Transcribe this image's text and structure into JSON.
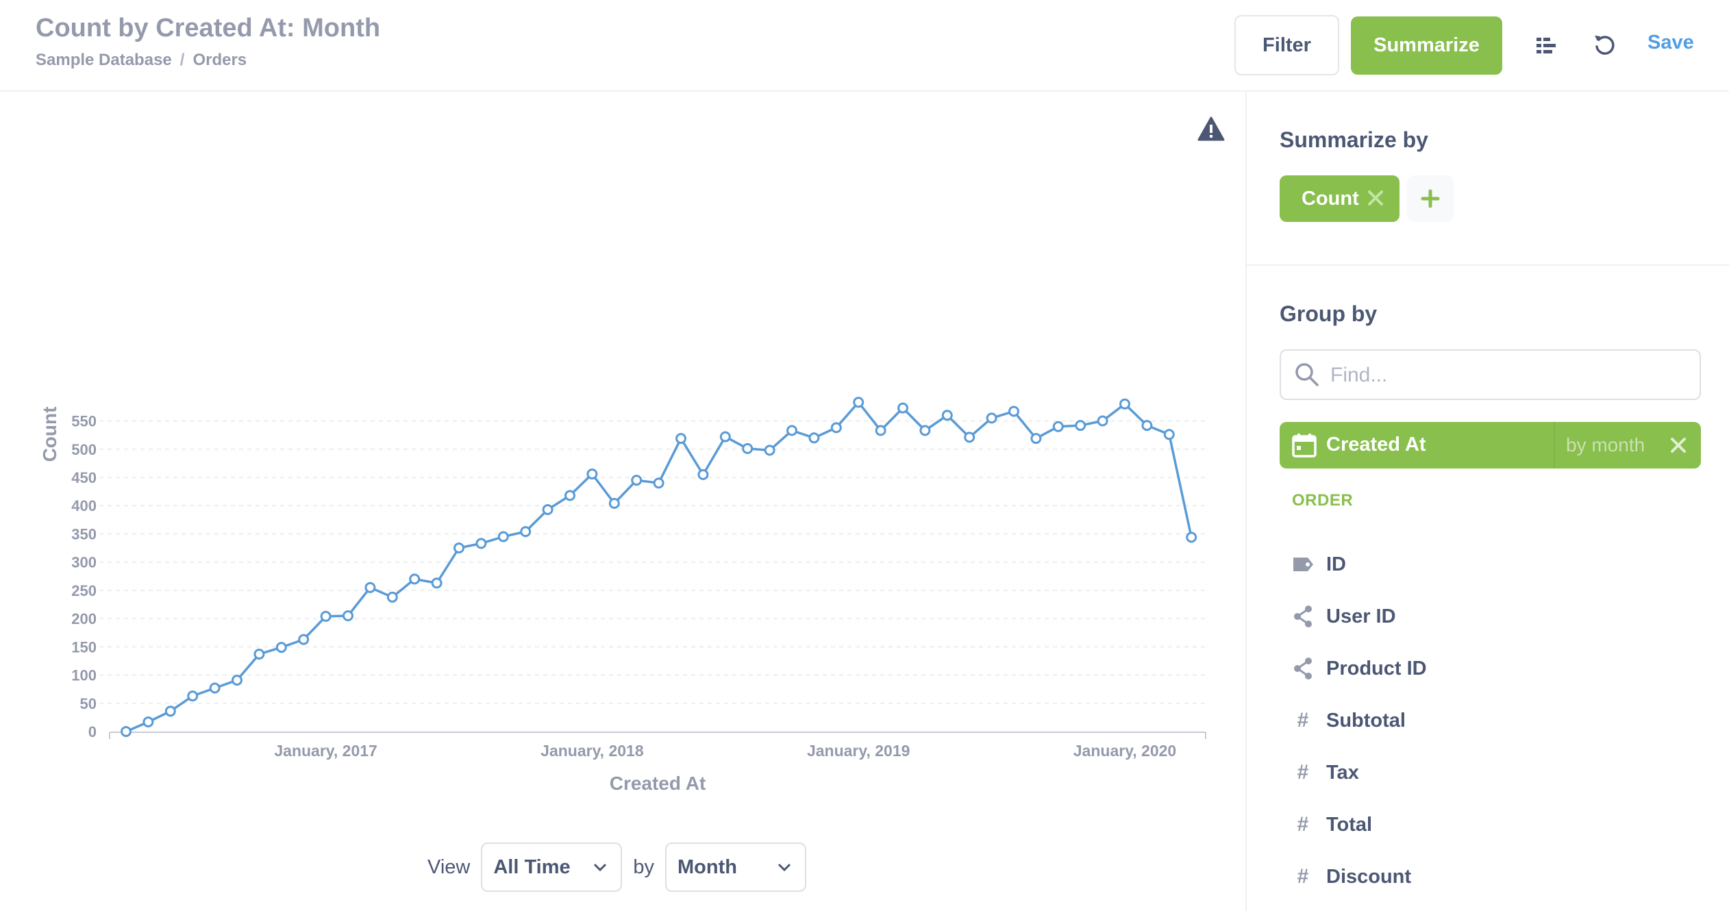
{
  "header": {
    "title": "Count by Created At: Month",
    "breadcrumb": [
      "Sample Database",
      "Orders"
    ],
    "breadcrumb_sep": "/",
    "filter_label": "Filter",
    "summarize_label": "Summarize",
    "save_label": "Save"
  },
  "colors": {
    "accent_green": "#88bf4d",
    "link_blue": "#509ee3",
    "line_series": "#5a9bd6",
    "muted_text": "#949aab",
    "dark_text": "#4c5773"
  },
  "icons": {
    "table_toggle": "table-list-icon",
    "refresh": "refresh-icon",
    "warning": "warning-icon",
    "search": "search-icon",
    "calendar": "calendar-icon",
    "close": "close-icon",
    "add": "plus-icon",
    "chevron": "chevron-down-icon"
  },
  "chart_data": {
    "type": "line",
    "title": "",
    "xlabel": "Created At",
    "ylabel": "Count",
    "ylim": [
      0,
      550
    ],
    "yticks": [
      0,
      50,
      100,
      150,
      200,
      250,
      300,
      350,
      400,
      450,
      500,
      550
    ],
    "xtick_labels": [
      "January, 2017",
      "January, 2018",
      "January, 2019",
      "January, 2020"
    ],
    "grid": true,
    "series": [
      {
        "values": [
          0,
          17,
          36,
          63,
          77,
          91,
          137,
          149,
          163,
          204,
          205,
          255,
          238,
          270,
          263,
          325,
          333,
          345,
          354,
          393,
          418,
          456,
          404,
          445,
          440,
          519,
          455,
          522,
          501,
          498,
          533,
          520,
          538,
          583,
          533,
          573,
          533,
          560,
          521,
          555,
          567,
          519,
          540,
          542,
          550,
          580,
          542,
          526,
          344
        ]
      }
    ],
    "x": [
      "2016-04",
      "2016-05",
      "2016-06",
      "2016-07",
      "2016-08",
      "2016-09",
      "2016-10",
      "2016-11",
      "2016-12",
      "2017-01",
      "2017-02",
      "2017-03",
      "2017-04",
      "2017-05",
      "2017-06",
      "2017-07",
      "2017-08",
      "2017-09",
      "2017-10",
      "2017-11",
      "2017-12",
      "2018-01",
      "2018-02",
      "2018-03",
      "2018-04",
      "2018-05",
      "2018-06",
      "2018-07",
      "2018-08",
      "2018-09",
      "2018-10",
      "2018-11",
      "2018-12",
      "2019-01",
      "2019-02",
      "2019-03",
      "2019-04",
      "2019-05",
      "2019-06",
      "2019-07",
      "2019-08",
      "2019-09",
      "2019-10",
      "2019-11",
      "2019-12",
      "2020-01",
      "2020-02",
      "2020-03",
      "2020-04"
    ]
  },
  "footer": {
    "view_label": "View",
    "view_value": "All Time",
    "by_label": "by",
    "granularity_value": "Month"
  },
  "sidebar": {
    "summarize_heading": "Summarize by",
    "metric": "Count",
    "group_heading": "Group by",
    "search_placeholder": "Find...",
    "selected_dimension": "Created At",
    "selected_bucket": "by month",
    "section_label": "ORDER",
    "fields": [
      {
        "label": "ID",
        "icon": "tag-icon"
      },
      {
        "label": "User ID",
        "icon": "connections-icon"
      },
      {
        "label": "Product ID",
        "icon": "connections-icon"
      },
      {
        "label": "Subtotal",
        "icon": "number-icon"
      },
      {
        "label": "Tax",
        "icon": "number-icon"
      },
      {
        "label": "Total",
        "icon": "number-icon"
      },
      {
        "label": "Discount",
        "icon": "number-icon"
      }
    ]
  }
}
